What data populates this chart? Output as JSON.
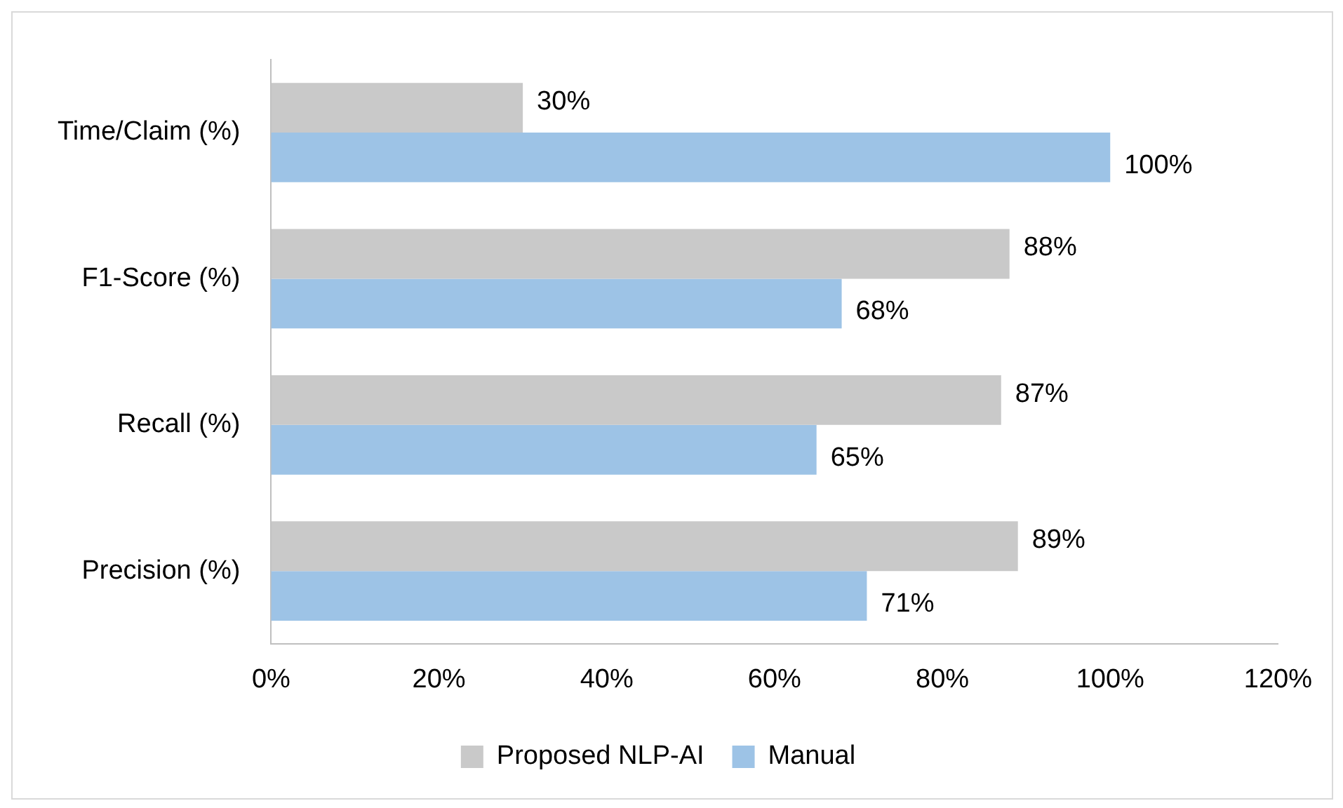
{
  "chart_data": {
    "type": "bar",
    "orientation": "horizontal",
    "categories": [
      "Time/Claim (%)",
      "F1-Score (%)",
      "Recall (%)",
      "Precision (%)"
    ],
    "series": [
      {
        "name": "Proposed NLP-AI",
        "color": "#c9c9c9",
        "values": [
          30,
          88,
          87,
          89
        ],
        "value_labels": [
          "30%",
          "88%",
          "87%",
          "89%"
        ]
      },
      {
        "name": "Manual",
        "color": "#9dc3e6",
        "values": [
          100,
          68,
          65,
          71
        ],
        "value_labels": [
          "100%",
          "68%",
          "65%",
          "71%"
        ]
      }
    ],
    "xlim": [
      0,
      120
    ],
    "xticks": [
      {
        "value": 0,
        "label": "0%"
      },
      {
        "value": 20,
        "label": "20%"
      },
      {
        "value": 40,
        "label": "40%"
      },
      {
        "value": 60,
        "label": "60%"
      },
      {
        "value": 80,
        "label": "80%"
      },
      {
        "value": 100,
        "label": "100%"
      },
      {
        "value": 120,
        "label": "120%"
      }
    ],
    "grid": false,
    "legend": "bottom"
  }
}
